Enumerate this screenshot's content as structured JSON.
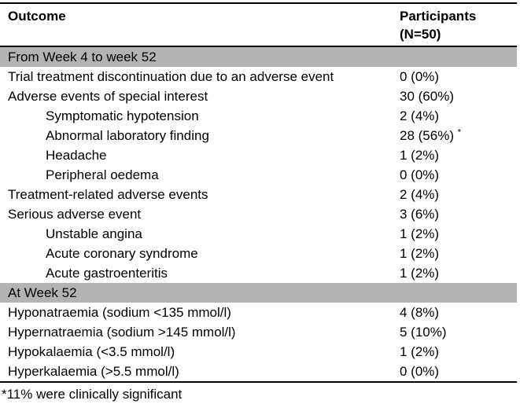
{
  "table": {
    "header": {
      "outcome_label": "Outcome",
      "participants_label_line1": "Participants",
      "participants_label_line2": "(N=50)"
    },
    "sections": [
      {
        "title": "From Week 4 to week 52",
        "rows": [
          {
            "label": "Trial treatment discontinuation due to an adverse event",
            "value": "0 (0%)",
            "indent": 0
          },
          {
            "label": "Adverse events of special interest",
            "value": "30 (60%)",
            "indent": 0
          },
          {
            "label": "Symptomatic hypotension",
            "value": "2 (4%)",
            "indent": 1
          },
          {
            "label": "Abnormal laboratory finding",
            "value": "28 (56%)",
            "value_superscript": "*",
            "indent": 1
          },
          {
            "label": "Headache",
            "value": "1 (2%)",
            "indent": 1
          },
          {
            "label": "Peripheral oedema",
            "value": "0 (0%)",
            "indent": 1
          },
          {
            "label": "Treatment-related adverse events",
            "value": "2 (4%)",
            "indent": 0
          },
          {
            "label": "Serious adverse event",
            "value": "3 (6%)",
            "indent": 0
          },
          {
            "label": "Unstable angina",
            "value": "1 (2%)",
            "indent": 1
          },
          {
            "label": "Acute coronary syndrome",
            "value": "1 (2%)",
            "indent": 1
          },
          {
            "label": "Acute gastroenteritis",
            "value": "1 (2%)",
            "indent": 1
          }
        ]
      },
      {
        "title": "At Week 52",
        "rows": [
          {
            "label": "Hyponatraemia (sodium <135 mmol/l)",
            "value": "4 (8%)",
            "indent": 0
          },
          {
            "label": "Hypernatraemia (sodium >145 mmol/l)",
            "value": "5 (10%)",
            "indent": 0
          },
          {
            "label": "Hypokalaemia (<3.5 mmol/l)",
            "value": "1 (2%)",
            "indent": 0
          },
          {
            "label": "Hyperkalaemia (>5.5 mmol/l)",
            "value": "0 (0%)",
            "indent": 0
          }
        ]
      }
    ],
    "footnote": "*11% were clinically significant",
    "colors": {
      "section_background": "#b3b3b3",
      "border": "#000000",
      "text": "#000000",
      "page_background": "#ffffff"
    }
  }
}
